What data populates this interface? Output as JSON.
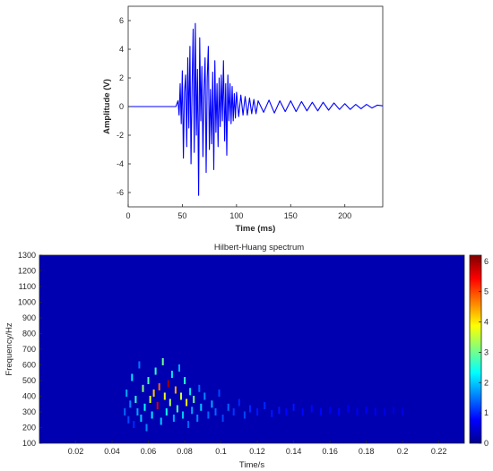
{
  "chart_data": [
    {
      "type": "line",
      "title": "",
      "xlabel": "Time (ms)",
      "ylabel": "Amplitude (V)",
      "xlim": [
        0,
        235
      ],
      "ylim": [
        -7,
        7
      ],
      "x_ticks": [
        0,
        50,
        100,
        150,
        200
      ],
      "y_ticks": [
        -6,
        -4,
        -2,
        0,
        2,
        4,
        6
      ],
      "grid": false,
      "series": [
        {
          "color": "#0000ff",
          "x": [
            0,
            44,
            46,
            47,
            48,
            49,
            50,
            51,
            52,
            53,
            54,
            55,
            56,
            57,
            58,
            59,
            60,
            61,
            62,
            63,
            64,
            65,
            66,
            67,
            68,
            69,
            70,
            71,
            72,
            73,
            74,
            75,
            76,
            77,
            78,
            79,
            80,
            81,
            82,
            83,
            84,
            85,
            86,
            87,
            88,
            89,
            90,
            91,
            92,
            93,
            94,
            95,
            96,
            97,
            98,
            99,
            100,
            102,
            104,
            106,
            108,
            110,
            112,
            114,
            116,
            118,
            120,
            125,
            130,
            135,
            140,
            145,
            150,
            155,
            160,
            165,
            170,
            175,
            180,
            185,
            190,
            195,
            200,
            205,
            210,
            215,
            220,
            225,
            230,
            235
          ],
          "y": [
            0,
            0,
            0.4,
            -0.6,
            1.6,
            -1.2,
            2.5,
            -3.6,
            1.0,
            2.2,
            -2.8,
            3.4,
            -1.5,
            4.2,
            -4.0,
            1.5,
            5.4,
            -3.2,
            5.8,
            -2.0,
            2.6,
            -6.2,
            4.8,
            -1.0,
            2.8,
            -3.5,
            1.2,
            3.4,
            -4.6,
            2.0,
            4.2,
            -3.0,
            1.2,
            -2.6,
            2.4,
            -4.4,
            3.2,
            -1.8,
            1.6,
            -2.8,
            2.0,
            -1.4,
            2.2,
            -1.0,
            3.2,
            -2.4,
            1.6,
            -3.4,
            2.2,
            -1.0,
            1.6,
            -1.2,
            1.4,
            -1.0,
            0.9,
            -0.8,
            1.0,
            -0.7,
            0.8,
            -0.6,
            0.7,
            -0.6,
            0.6,
            -0.5,
            0.5,
            -0.5,
            0.4,
            -0.4,
            0.45,
            -0.45,
            0.4,
            -0.35,
            0.4,
            -0.35,
            0.35,
            -0.3,
            0.3,
            -0.3,
            0.3,
            -0.25,
            0.25,
            -0.2,
            0.2,
            -0.2,
            0.15,
            -0.15,
            0.15,
            -0.1,
            0.1,
            0.05
          ]
        }
      ]
    },
    {
      "type": "heatmap",
      "title": "Hilbert-Huang spectrum",
      "xlabel": "Time/s",
      "ylabel": "Frequency/Hz",
      "xlim": [
        0,
        0.234
      ],
      "ylim": [
        100,
        1300
      ],
      "x_ticks": [
        0.02,
        0.04,
        0.06,
        0.08,
        0.1,
        0.12,
        0.14,
        0.16,
        0.18,
        0.2,
        0.22
      ],
      "y_ticks": [
        100,
        200,
        300,
        400,
        500,
        600,
        700,
        800,
        900,
        1000,
        1100,
        1200,
        1300
      ],
      "background_value": 0.3,
      "colorbar": {
        "range": [
          0,
          6.2
        ],
        "ticks": [
          0,
          1,
          2,
          3,
          4,
          5,
          6
        ],
        "colormap": "jet"
      },
      "points": [
        {
          "t": 0.047,
          "f": 300,
          "v": 1.4
        },
        {
          "t": 0.048,
          "f": 420,
          "v": 1.8
        },
        {
          "t": 0.049,
          "f": 250,
          "v": 1.2
        },
        {
          "t": 0.05,
          "f": 350,
          "v": 1.6
        },
        {
          "t": 0.051,
          "f": 520,
          "v": 2.2
        },
        {
          "t": 0.052,
          "f": 220,
          "v": 1.0
        },
        {
          "t": 0.053,
          "f": 380,
          "v": 2.6
        },
        {
          "t": 0.054,
          "f": 300,
          "v": 1.8
        },
        {
          "t": 0.055,
          "f": 600,
          "v": 1.5
        },
        {
          "t": 0.056,
          "f": 260,
          "v": 2.0
        },
        {
          "t": 0.057,
          "f": 450,
          "v": 3.2
        },
        {
          "t": 0.058,
          "f": 330,
          "v": 2.4
        },
        {
          "t": 0.059,
          "f": 200,
          "v": 1.6
        },
        {
          "t": 0.06,
          "f": 500,
          "v": 2.8
        },
        {
          "t": 0.061,
          "f": 380,
          "v": 3.6
        },
        {
          "t": 0.062,
          "f": 280,
          "v": 2.2
        },
        {
          "t": 0.063,
          "f": 420,
          "v": 4.2
        },
        {
          "t": 0.064,
          "f": 560,
          "v": 2.6
        },
        {
          "t": 0.065,
          "f": 340,
          "v": 5.6
        },
        {
          "t": 0.066,
          "f": 460,
          "v": 4.8
        },
        {
          "t": 0.067,
          "f": 240,
          "v": 2.0
        },
        {
          "t": 0.068,
          "f": 620,
          "v": 3.0
        },
        {
          "t": 0.069,
          "f": 400,
          "v": 3.8
        },
        {
          "t": 0.07,
          "f": 300,
          "v": 2.4
        },
        {
          "t": 0.071,
          "f": 480,
          "v": 6.0
        },
        {
          "t": 0.072,
          "f": 360,
          "v": 3.4
        },
        {
          "t": 0.073,
          "f": 540,
          "v": 2.2
        },
        {
          "t": 0.074,
          "f": 260,
          "v": 1.8
        },
        {
          "t": 0.075,
          "f": 440,
          "v": 4.4
        },
        {
          "t": 0.076,
          "f": 320,
          "v": 2.8
        },
        {
          "t": 0.077,
          "f": 580,
          "v": 1.8
        },
        {
          "t": 0.078,
          "f": 400,
          "v": 3.6
        },
        {
          "t": 0.079,
          "f": 280,
          "v": 2.0
        },
        {
          "t": 0.08,
          "f": 500,
          "v": 2.6
        },
        {
          "t": 0.081,
          "f": 360,
          "v": 4.0
        },
        {
          "t": 0.082,
          "f": 220,
          "v": 1.4
        },
        {
          "t": 0.083,
          "f": 430,
          "v": 2.2
        },
        {
          "t": 0.084,
          "f": 310,
          "v": 1.8
        },
        {
          "t": 0.085,
          "f": 380,
          "v": 3.0
        },
        {
          "t": 0.087,
          "f": 260,
          "v": 1.6
        },
        {
          "t": 0.088,
          "f": 450,
          "v": 1.4
        },
        {
          "t": 0.089,
          "f": 330,
          "v": 2.0
        },
        {
          "t": 0.091,
          "f": 400,
          "v": 1.6
        },
        {
          "t": 0.093,
          "f": 280,
          "v": 1.4
        },
        {
          "t": 0.095,
          "f": 350,
          "v": 1.8
        },
        {
          "t": 0.097,
          "f": 300,
          "v": 1.4
        },
        {
          "t": 0.099,
          "f": 420,
          "v": 1.2
        },
        {
          "t": 0.101,
          "f": 260,
          "v": 1.2
        },
        {
          "t": 0.104,
          "f": 330,
          "v": 1.4
        },
        {
          "t": 0.107,
          "f": 300,
          "v": 1.1
        },
        {
          "t": 0.11,
          "f": 360,
          "v": 1.0
        },
        {
          "t": 0.113,
          "f": 280,
          "v": 1.2
        },
        {
          "t": 0.116,
          "f": 320,
          "v": 1.0
        },
        {
          "t": 0.12,
          "f": 300,
          "v": 0.9
        },
        {
          "t": 0.124,
          "f": 340,
          "v": 1.0
        },
        {
          "t": 0.128,
          "f": 290,
          "v": 0.9
        },
        {
          "t": 0.132,
          "f": 310,
          "v": 0.9
        },
        {
          "t": 0.136,
          "f": 300,
          "v": 0.8
        },
        {
          "t": 0.14,
          "f": 330,
          "v": 0.9
        },
        {
          "t": 0.145,
          "f": 300,
          "v": 0.8
        },
        {
          "t": 0.15,
          "f": 320,
          "v": 0.8
        },
        {
          "t": 0.155,
          "f": 300,
          "v": 0.8
        },
        {
          "t": 0.16,
          "f": 310,
          "v": 0.7
        },
        {
          "t": 0.165,
          "f": 300,
          "v": 0.8
        },
        {
          "t": 0.17,
          "f": 320,
          "v": 0.7
        },
        {
          "t": 0.175,
          "f": 300,
          "v": 0.7
        },
        {
          "t": 0.18,
          "f": 310,
          "v": 0.7
        },
        {
          "t": 0.185,
          "f": 300,
          "v": 0.7
        },
        {
          "t": 0.19,
          "f": 300,
          "v": 0.6
        },
        {
          "t": 0.195,
          "f": 310,
          "v": 0.6
        },
        {
          "t": 0.2,
          "f": 300,
          "v": 0.6
        }
      ]
    }
  ]
}
